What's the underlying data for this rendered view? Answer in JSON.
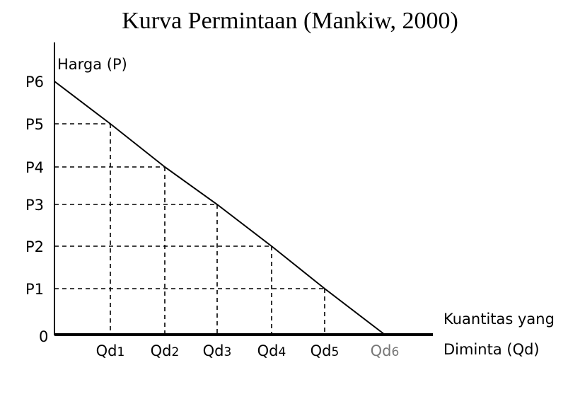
{
  "chart_data": {
    "type": "line",
    "title": "Kurva Permintaan (Mankiw, 2000)",
    "ylabel": "Harga (P)",
    "xlabel_lines": [
      "Kuantitas yang",
      "Diminta (Qd)"
    ],
    "origin_label": "0",
    "x_ticks": [
      "Qd1",
      "Qd2",
      "Qd3",
      "Qd4",
      "Qd5",
      "Qd6"
    ],
    "y_ticks": [
      "P6",
      "P5",
      "P4",
      "P3",
      "P2",
      "P1"
    ],
    "grid_lines": "dashed guides from each point to both axes",
    "series": [
      {
        "points": [
          {
            "x": "0",
            "y": "P6"
          },
          {
            "x": "Qd1",
            "y": "P5"
          },
          {
            "x": "Qd2",
            "y": "P4"
          },
          {
            "x": "Qd3",
            "y": "P3"
          },
          {
            "x": "Qd4",
            "y": "P2"
          },
          {
            "x": "Qd5",
            "y": "P1"
          },
          {
            "x": "Qd6",
            "y": "0"
          }
        ]
      }
    ],
    "colors": {
      "curve": "#000000",
      "qd6_label": "#777777"
    }
  }
}
